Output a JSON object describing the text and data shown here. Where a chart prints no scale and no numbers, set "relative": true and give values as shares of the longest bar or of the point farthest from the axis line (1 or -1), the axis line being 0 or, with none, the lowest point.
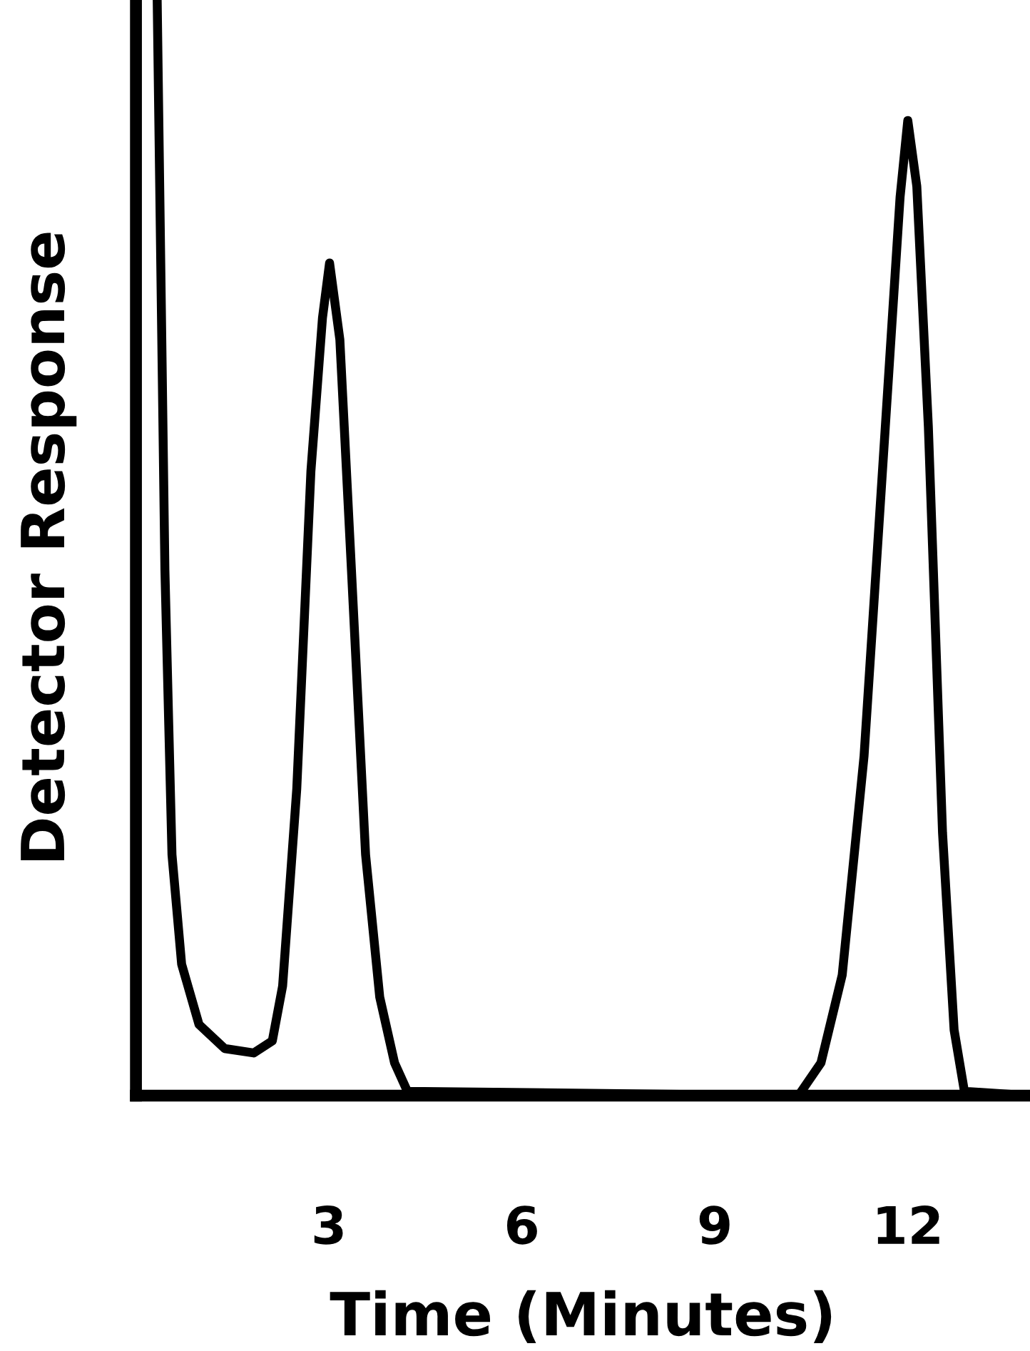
{
  "chart_data": {
    "type": "line",
    "relative": true,
    "xlabel": "Time (Minutes)",
    "ylabel": "Detector Response",
    "xlim": [
      0,
      13.9
    ],
    "xticks": [
      3,
      6,
      9,
      12
    ],
    "tick_labels": "x",
    "series": [
      {
        "color": "#000000",
        "x": [
          0.33,
          0.45,
          0.56,
          0.71,
          0.98,
          1.38,
          1.83,
          2.12,
          2.28,
          2.5,
          2.72,
          2.9,
          3.01,
          3.17,
          3.35,
          3.57,
          3.79,
          4.02,
          4.22,
          10.3,
          10.65,
          10.98,
          11.32,
          11.65,
          11.88,
          12.0,
          12.14,
          12.32,
          12.54,
          12.72,
          12.88,
          13.9
        ],
        "values": [
          1.0,
          0.48,
          0.22,
          0.12,
          0.065,
          0.043,
          0.039,
          0.05,
          0.1,
          0.28,
          0.57,
          0.71,
          0.76,
          0.69,
          0.48,
          0.22,
          0.09,
          0.03,
          0.004,
          0.0,
          0.03,
          0.11,
          0.31,
          0.61,
          0.82,
          0.89,
          0.83,
          0.61,
          0.24,
          0.06,
          0.004,
          0.0
        ]
      }
    ]
  }
}
